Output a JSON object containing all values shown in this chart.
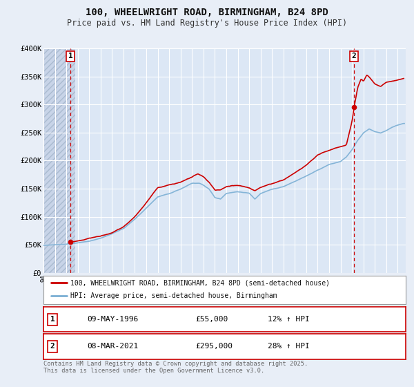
{
  "title_line1": "100, WHEELWRIGHT ROAD, BIRMINGHAM, B24 8PD",
  "title_line2": "Price paid vs. HM Land Registry's House Price Index (HPI)",
  "ylim": [
    0,
    400000
  ],
  "yticks": [
    0,
    50000,
    100000,
    150000,
    200000,
    250000,
    300000,
    350000,
    400000
  ],
  "ytick_labels": [
    "£0",
    "£50K",
    "£100K",
    "£150K",
    "£200K",
    "£250K",
    "£300K",
    "£350K",
    "£400K"
  ],
  "background_color": "#e8eef7",
  "plot_bg_color": "#dce7f5",
  "grid_color": "#ffffff",
  "line1_color": "#cc0000",
  "line2_color": "#7bafd4",
  "vline_color": "#cc0000",
  "annotation_box_color": "#cc0000",
  "legend_line1": "100, WHEELWRIGHT ROAD, BIRMINGHAM, B24 8PD (semi-detached house)",
  "legend_line2": "HPI: Average price, semi-detached house, Birmingham",
  "info1_num": "1",
  "info1_date": "09-MAY-1996",
  "info1_price": "£55,000",
  "info1_hpi": "12% ↑ HPI",
  "info2_num": "2",
  "info2_date": "08-MAR-2021",
  "info2_price": "£295,000",
  "info2_hpi": "28% ↑ HPI",
  "footer": "Contains HM Land Registry data © Crown copyright and database right 2025.\nThis data is licensed under the Open Government Licence v3.0.",
  "xmin": 1994.0,
  "xmax": 2025.7,
  "sale1_x": 1996.36,
  "sale1_y": 55000,
  "sale2_x": 2021.18,
  "sale2_y": 295000,
  "hatch_end": 1996.75
}
